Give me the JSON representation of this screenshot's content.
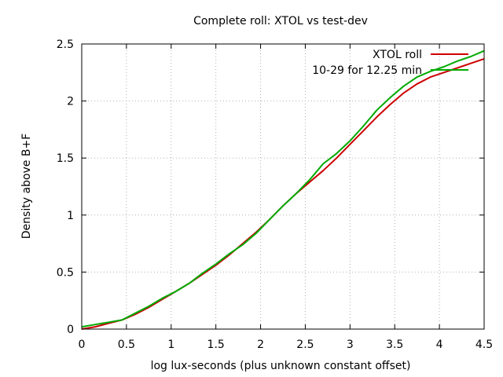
{
  "chart_data": {
    "type": "line",
    "title": "Complete roll: XTOL vs test-dev",
    "xlabel": "log lux-seconds (plus unknown constant offset)",
    "ylabel": "Density above B+F",
    "xlim": [
      0,
      4.5
    ],
    "ylim": [
      0,
      2.5
    ],
    "xticks": [
      0,
      0.5,
      1,
      1.5,
      2,
      2.5,
      3,
      3.5,
      4,
      4.5
    ],
    "yticks": [
      0,
      0.5,
      1,
      1.5,
      2,
      2.5
    ],
    "xtick_labels": [
      "0",
      "0.5",
      "1",
      "1.5",
      "2",
      "2.5",
      "3",
      "3.5",
      "4",
      "4.5"
    ],
    "ytick_labels": [
      "0",
      "0.5",
      "1",
      "1.5",
      "2",
      "2.5"
    ],
    "grid": true,
    "legend_position": "top-right",
    "series": [
      {
        "name": "XTOL roll",
        "color": "#cc0000",
        "x": [
          0,
          0.15,
          0.3,
          0.45,
          0.6,
          0.75,
          0.9,
          1.05,
          1.2,
          1.35,
          1.5,
          1.65,
          1.8,
          1.95,
          2.1,
          2.25,
          2.4,
          2.55,
          2.7,
          2.85,
          3.0,
          3.15,
          3.3,
          3.45,
          3.6,
          3.75,
          3.9,
          4.05,
          4.2,
          4.35,
          4.5
        ],
        "y": [
          0.0,
          0.02,
          0.05,
          0.08,
          0.13,
          0.19,
          0.26,
          0.33,
          0.4,
          0.48,
          0.56,
          0.65,
          0.75,
          0.85,
          0.96,
          1.08,
          1.19,
          1.29,
          1.39,
          1.5,
          1.62,
          1.74,
          1.86,
          1.97,
          2.07,
          2.15,
          2.21,
          2.25,
          2.29,
          2.33,
          2.37
        ]
      },
      {
        "name": "10-29 for 12.25 min",
        "color": "#00aa00",
        "x": [
          0,
          0.15,
          0.3,
          0.45,
          0.6,
          0.75,
          0.9,
          1.05,
          1.2,
          1.35,
          1.5,
          1.65,
          1.8,
          1.95,
          2.1,
          2.25,
          2.4,
          2.55,
          2.7,
          2.85,
          3.0,
          3.15,
          3.3,
          3.45,
          3.6,
          3.75,
          3.9,
          4.05,
          4.2,
          4.35,
          4.5
        ],
        "y": [
          0.02,
          0.04,
          0.06,
          0.08,
          0.14,
          0.2,
          0.27,
          0.33,
          0.4,
          0.49,
          0.57,
          0.66,
          0.74,
          0.84,
          0.96,
          1.08,
          1.19,
          1.31,
          1.45,
          1.54,
          1.65,
          1.78,
          1.92,
          2.03,
          2.13,
          2.21,
          2.26,
          2.3,
          2.35,
          2.39,
          2.44
        ]
      }
    ]
  }
}
